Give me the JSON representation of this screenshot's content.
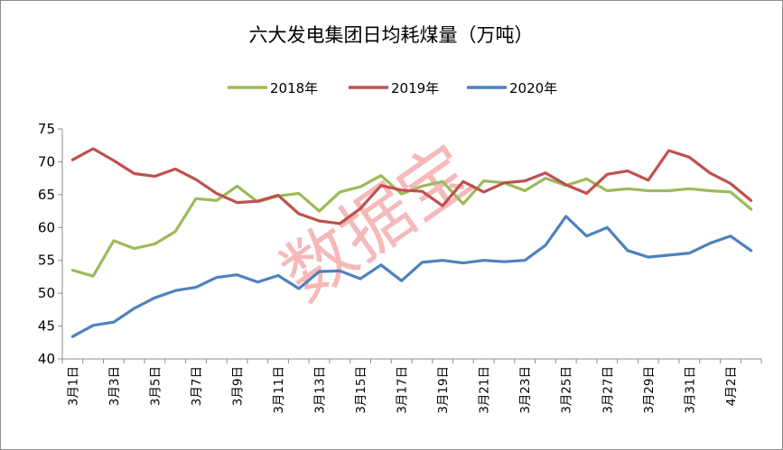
{
  "chart_data": {
    "type": "line",
    "title": "六大发电集团日均耗煤量（万吨）",
    "xlabel": "",
    "ylabel": "",
    "ylim": [
      40,
      75
    ],
    "yticks": [
      "40",
      "45",
      "50",
      "55",
      "60",
      "65",
      "70",
      "75"
    ],
    "grid": false,
    "legend_position": "top",
    "watermark": "数据宝",
    "x": [
      "3月1日",
      "3月2日",
      "3月3日",
      "3月4日",
      "3月5日",
      "3月6日",
      "3月7日",
      "3月8日",
      "3月9日",
      "3月10日",
      "3月11日",
      "3月12日",
      "3月13日",
      "3月14日",
      "3月15日",
      "3月16日",
      "3月17日",
      "3月18日",
      "3月19日",
      "3月20日",
      "3月21日",
      "3月22日",
      "3月23日",
      "3月24日",
      "3月25日",
      "3月26日",
      "3月27日",
      "3月28日",
      "3月29日",
      "3月30日",
      "3月31日",
      "4月1日",
      "4月2日",
      "4月3日"
    ],
    "x_tick_labels": [
      "3月1日",
      "3月3日",
      "3月5日",
      "3月7日",
      "3月9日",
      "3月11日",
      "3月13日",
      "3月15日",
      "3月17日",
      "3月19日",
      "3月21日",
      "3月23日",
      "3月25日",
      "3月27日",
      "3月29日",
      "3月31日",
      "4月2日"
    ],
    "series": [
      {
        "name": "2018年",
        "color": "#9bbb59",
        "values": [
          53.5,
          52.6,
          58.0,
          56.8,
          57.5,
          59.4,
          64.4,
          64.1,
          66.3,
          63.9,
          64.8,
          65.2,
          62.5,
          65.4,
          66.2,
          67.9,
          65.1,
          66.3,
          67.0,
          63.6,
          67.1,
          66.8,
          65.6,
          67.5,
          66.4,
          67.4,
          65.6,
          65.9,
          65.6,
          65.6,
          65.9,
          65.6,
          65.4,
          62.8
        ]
      },
      {
        "name": "2019年",
        "color": "#c0504d",
        "values": [
          70.3,
          72.0,
          70.2,
          68.2,
          67.8,
          68.9,
          67.3,
          65.2,
          63.8,
          64.0,
          64.9,
          62.1,
          61.0,
          60.6,
          62.9,
          66.4,
          65.7,
          65.5,
          63.3,
          67.0,
          65.4,
          66.8,
          67.1,
          68.3,
          66.5,
          65.2,
          68.1,
          68.6,
          67.2,
          71.7,
          70.7,
          68.3,
          66.7,
          64.1
        ]
      },
      {
        "name": "2020年",
        "color": "#4f81bd",
        "values": [
          43.4,
          45.1,
          45.6,
          47.7,
          49.3,
          50.4,
          50.9,
          52.4,
          52.8,
          51.7,
          52.7,
          50.7,
          53.3,
          53.4,
          52.2,
          54.3,
          51.9,
          54.7,
          55.0,
          54.6,
          55.0,
          54.8,
          55.0,
          57.3,
          61.7,
          58.7,
          60.0,
          56.5,
          55.5,
          55.8,
          56.1,
          57.6,
          58.7,
          56.5
        ]
      }
    ]
  }
}
